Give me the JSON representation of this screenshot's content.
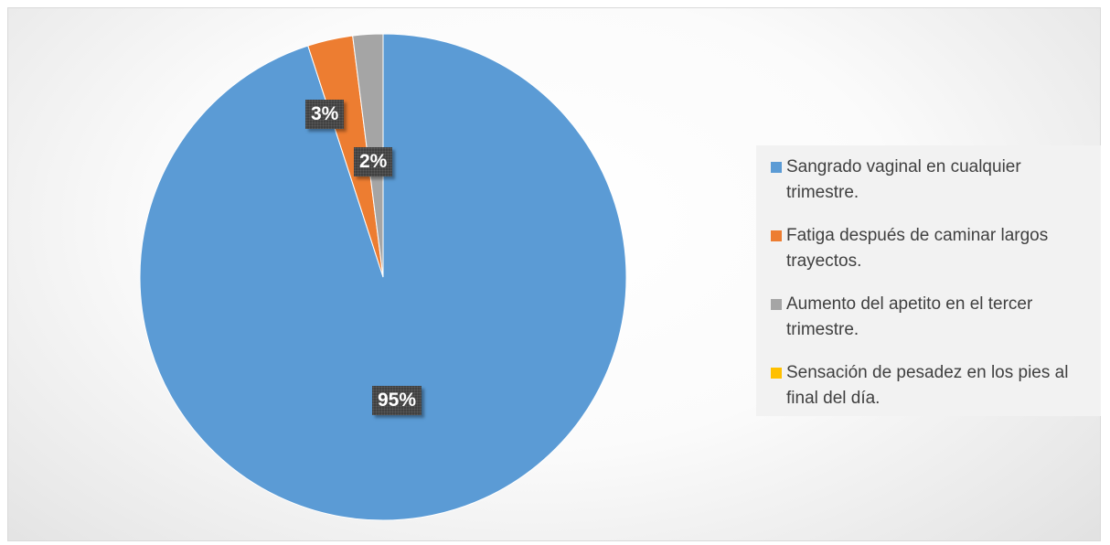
{
  "chart_data": {
    "type": "pie",
    "title": "",
    "slices": [
      {
        "label": "Sangrado vaginal en cualquier trimestre.",
        "value": 95,
        "display": "95%",
        "color": "#5B9BD5"
      },
      {
        "label": "Fatiga después de caminar largos trayectos.",
        "value": 3,
        "display": "3%",
        "color": "#ED7D31"
      },
      {
        "label": "Aumento del apetito en el tercer trimestre.",
        "value": 2,
        "display": "2%",
        "color": "#A5A5A5"
      },
      {
        "label": "Sensación de pesadez en los pies al final del día.",
        "value": 0,
        "display": "",
        "color": "#FFC000"
      }
    ],
    "legend_position": "right"
  }
}
